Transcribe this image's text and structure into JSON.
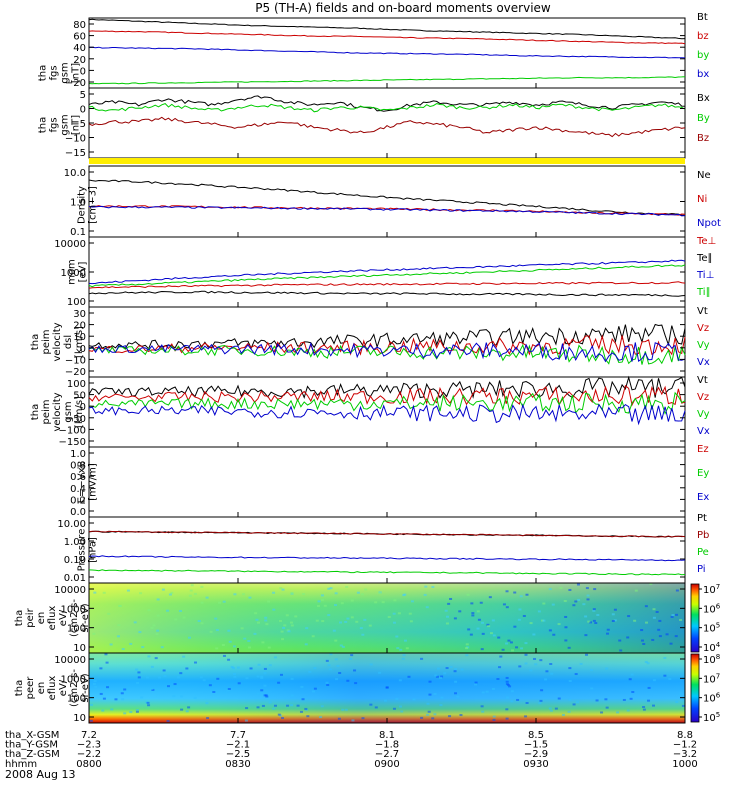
{
  "title": "P5 (TH-A) fields and on-board moments overview",
  "chart_data": [
    {
      "type": "line",
      "ylabel": [
        "tha",
        "fgs",
        "gsm",
        "[nT]"
      ],
      "yticks": [
        "80",
        "60",
        "40",
        "20",
        "0",
        "−20"
      ],
      "ylim": [
        -20,
        82
      ],
      "series": [
        {
          "name": "Bt",
          "color": "#000000",
          "values": [
            80,
            77,
            74,
            71,
            69,
            67,
            64,
            62,
            60,
            58,
            55,
            52
          ]
        },
        {
          "name": "bz",
          "color": "#cc0000",
          "values": [
            63,
            62,
            60,
            58,
            56,
            55,
            53,
            52,
            50,
            48,
            46,
            45
          ]
        },
        {
          "name": "by",
          "color": "#00cc00",
          "values": [
            -14,
            -13,
            -12,
            -11,
            -10,
            -9,
            -8,
            -7,
            -6,
            -5,
            -5,
            -4
          ]
        },
        {
          "name": "bx",
          "color": "#0000cc",
          "values": [
            39,
            38,
            37,
            35,
            33,
            31,
            30,
            29,
            27,
            26,
            25,
            24
          ]
        }
      ],
      "legend": [
        "Bt",
        "bz",
        "by",
        "bx"
      ]
    },
    {
      "type": "line",
      "ylabel": [
        "tha",
        "fgs",
        "gsm",
        "[nT]"
      ],
      "yticks": [
        "5",
        "0",
        "−5",
        "−10",
        "−15"
      ],
      "ylim": [
        -18,
        7
      ],
      "series": [
        {
          "name": "Bx",
          "color": "#000000",
          "values": [
            1,
            2,
            1,
            3,
            2,
            1,
            3,
            4,
            2,
            1,
            2,
            0,
            -1,
            1,
            2,
            1,
            1,
            2,
            1,
            2,
            1,
            0,
            1,
            2,
            1
          ]
        },
        {
          "name": "By",
          "color": "#00cc00",
          "values": [
            0,
            -1,
            0,
            1,
            0,
            -1,
            0,
            1,
            0,
            -1,
            0,
            0,
            -1,
            0,
            1,
            0,
            0,
            1,
            0,
            1,
            0,
            -1,
            0,
            1,
            0
          ]
        },
        {
          "name": "Bz",
          "color": "#990000",
          "values": [
            -6,
            -5,
            -5,
            -4,
            -5,
            -6,
            -7,
            -6,
            -5,
            -7,
            -8,
            -9,
            -7,
            -5,
            -6,
            -7,
            -9,
            -8,
            -7,
            -8,
            -9,
            -10,
            -9,
            -8,
            -7
          ]
        }
      ],
      "legend": [
        "Bx",
        "By",
        "Bz"
      ]
    },
    {
      "type": "line",
      "ylabel": [
        "Density",
        "[cm−3]"
      ],
      "yticks": [
        "10.0",
        "1.0",
        "0.1"
      ],
      "scale": "log",
      "ylim": [
        0.1,
        12
      ],
      "series": [
        {
          "name": "Ne",
          "color": "#000000",
          "values": [
            4.5,
            4.2,
            3.6,
            3.0,
            2.5,
            2.0,
            1.6,
            1.3,
            1.1,
            0.9,
            0.75,
            0.6,
            0.5,
            0.45
          ]
        },
        {
          "name": "Ni",
          "color": "#cc0000",
          "values": [
            0.8,
            0.8,
            0.78,
            0.75,
            0.72,
            0.7,
            0.68,
            0.65,
            0.62,
            0.6,
            0.55,
            0.5,
            0.48,
            0.45
          ]
        },
        {
          "name": "Npot",
          "color": "#0000cc",
          "values": [
            0.75,
            0.75,
            0.74,
            0.72,
            0.7,
            0.68,
            0.66,
            0.63,
            0.6,
            0.58,
            0.54,
            0.5,
            0.47,
            0.44
          ]
        }
      ],
      "legend": [
        "Ne",
        "Ni",
        "Npot"
      ]
    },
    {
      "type": "line",
      "ylabel": [
        "mom",
        "[eV]"
      ],
      "yticks": [
        "10000",
        "1000",
        "100"
      ],
      "scale": "log",
      "ylim": [
        100,
        12000
      ],
      "series": [
        {
          "name": "Te⊥",
          "color": "#cc0000",
          "values": [
            380,
            400,
            420,
            440,
            460,
            470,
            480,
            490,
            500,
            510,
            520,
            530
          ]
        },
        {
          "name": "Te∥",
          "color": "#000000",
          "values": [
            260,
            270,
            280,
            270,
            260,
            250,
            250,
            240,
            240,
            230,
            230,
            220
          ]
        },
        {
          "name": "Ti⊥",
          "color": "#0000cc",
          "values": [
            500,
            620,
            760,
            900,
            1050,
            1200,
            1350,
            1500,
            1700,
            1900,
            2100,
            2400
          ]
        },
        {
          "name": "Ti∥",
          "color": "#00cc00",
          "values": [
            420,
            480,
            560,
            650,
            740,
            840,
            950,
            1050,
            1200,
            1350,
            1550,
            1750
          ]
        }
      ],
      "legend": [
        "Te⊥",
        "Te∥",
        "Ti⊥",
        "Ti∥"
      ]
    },
    {
      "type": "line",
      "ylabel": [
        "tha",
        "peim",
        "velocity",
        "dsl",
        "[km/s]"
      ],
      "yticks": [
        "30",
        "20",
        "10",
        "0",
        "−10",
        "−20"
      ],
      "ylim": [
        -20,
        30
      ],
      "series": [
        {
          "name": "Vt",
          "color": "#000000",
          "values": [
            3,
            3,
            4,
            4,
            5,
            6,
            7,
            8,
            9,
            10,
            11,
            10
          ]
        },
        {
          "name": "Vz",
          "color": "#cc0000",
          "values": [
            0,
            0,
            1,
            1,
            1,
            1,
            2,
            2,
            2,
            3,
            3,
            3
          ]
        },
        {
          "name": "Vy",
          "color": "#00cc00",
          "values": [
            -1,
            -1,
            -1,
            -1,
            -2,
            -2,
            -2,
            -3,
            -3,
            -4,
            -4,
            -4
          ]
        },
        {
          "name": "Vx",
          "color": "#0000cc",
          "values": [
            0,
            0,
            0,
            0,
            0,
            -1,
            -1,
            -1,
            -1,
            -2,
            -2,
            -2
          ]
        }
      ],
      "legend": [
        "Vt",
        "Vz",
        "Vy",
        "Vx"
      ]
    },
    {
      "type": "line",
      "ylabel": [
        "tha",
        "peim",
        "velocity",
        "gsm",
        "[km/s]"
      ],
      "yticks": [
        "100",
        "50",
        "0",
        "−50",
        "−100",
        "−150"
      ],
      "ylim": [
        -150,
        110
      ],
      "series": [
        {
          "name": "Vt",
          "color": "#000000",
          "values": [
            55,
            55,
            56,
            57,
            58,
            60,
            62,
            64,
            66,
            68,
            70,
            70
          ]
        },
        {
          "name": "Vz",
          "color": "#cc0000",
          "values": [
            35,
            35,
            36,
            36,
            37,
            38,
            38,
            39,
            40,
            40,
            41,
            41
          ]
        },
        {
          "name": "Vy",
          "color": "#00cc00",
          "values": [
            10,
            10,
            11,
            11,
            12,
            12,
            12,
            13,
            13,
            13,
            14,
            14
          ]
        },
        {
          "name": "Vx",
          "color": "#0000cc",
          "values": [
            -15,
            -15,
            -16,
            -18,
            -20,
            -22,
            -24,
            -26,
            -28,
            -30,
            -32,
            -34
          ]
        }
      ],
      "legend": [
        "Vt",
        "Vz",
        "Vy",
        "Vx"
      ]
    },
    {
      "type": "line",
      "ylabel": [
        "E=−VxB",
        "[mV/m]"
      ],
      "yticks": [
        "1.0",
        "0.8",
        "0.6",
        "0.4",
        "0.2",
        "0.0"
      ],
      "ylim": [
        0,
        1
      ],
      "series": [],
      "legend": [
        "Ez",
        "Ey",
        "Ex"
      ]
    },
    {
      "type": "line",
      "ylabel": [
        "Pressure",
        "[nPa]"
      ],
      "yticks": [
        "10.00",
        "1.00",
        "0.10",
        "0.01"
      ],
      "scale": "log",
      "ylim": [
        0.01,
        12
      ],
      "series": [
        {
          "name": "Pt",
          "color": "#000000",
          "values": [
            2.5,
            2.4,
            2.3,
            2.2,
            2.1,
            2.0,
            1.9,
            1.8,
            1.7,
            1.6,
            1.5,
            1.45
          ]
        },
        {
          "name": "Pb",
          "color": "#990000",
          "values": [
            2.5,
            2.4,
            2.3,
            2.2,
            2.1,
            2.0,
            1.9,
            1.8,
            1.7,
            1.6,
            1.5,
            1.45
          ]
        },
        {
          "name": "Pe",
          "color": "#00cc00",
          "values": [
            0.04,
            0.038,
            0.037,
            0.035,
            0.034,
            0.032,
            0.031,
            0.03,
            0.028,
            0.027,
            0.026,
            0.025
          ]
        },
        {
          "name": "Pi",
          "color": "#0000cc",
          "values": [
            0.18,
            0.17,
            0.16,
            0.155,
            0.15,
            0.145,
            0.14,
            0.135,
            0.13,
            0.125,
            0.12,
            0.115
          ]
        }
      ],
      "legend": [
        "Pt",
        "Pb",
        "Pe",
        "Pi"
      ]
    },
    {
      "type": "heatmap",
      "ylabel": [
        "tha",
        "peir",
        "en",
        "eflux",
        "eV/",
        "(cm2-s-",
        "sr-eV)"
      ],
      "yticks": [
        "10000",
        "1000",
        "100",
        "10"
      ],
      "colorbar": [
        "10^7",
        "10^6",
        "10^5",
        "10^4"
      ]
    },
    {
      "type": "heatmap",
      "ylabel": [
        "tha",
        "peer",
        "en",
        "eflux",
        "eV/",
        "(cm2-s-",
        "sr-eV)"
      ],
      "yticks": [
        "10000",
        "1000",
        "100",
        "10"
      ],
      "colorbar": [
        "10^8",
        "10^7",
        "10^6",
        "10^5"
      ]
    }
  ],
  "footer": {
    "rows": [
      {
        "label": "tha_X-GSM",
        "values": [
          "7.2",
          "7.7",
          "8.1",
          "8.5",
          "8.8"
        ]
      },
      {
        "label": "tha_Y-GSM",
        "values": [
          "−2.3",
          "−2.1",
          "−1.8",
          "−1.5",
          "−1.2"
        ]
      },
      {
        "label": "tha_Z-GSM",
        "values": [
          "−2.2",
          "−2.5",
          "−2.7",
          "−2.9",
          "−3.2"
        ]
      },
      {
        "label": "hhmm",
        "values": [
          "0800",
          "0830",
          "0900",
          "0930",
          "1000"
        ]
      }
    ],
    "date": "2008 Aug 13"
  },
  "colors": {
    "accent_yellow": "#ffee00"
  }
}
